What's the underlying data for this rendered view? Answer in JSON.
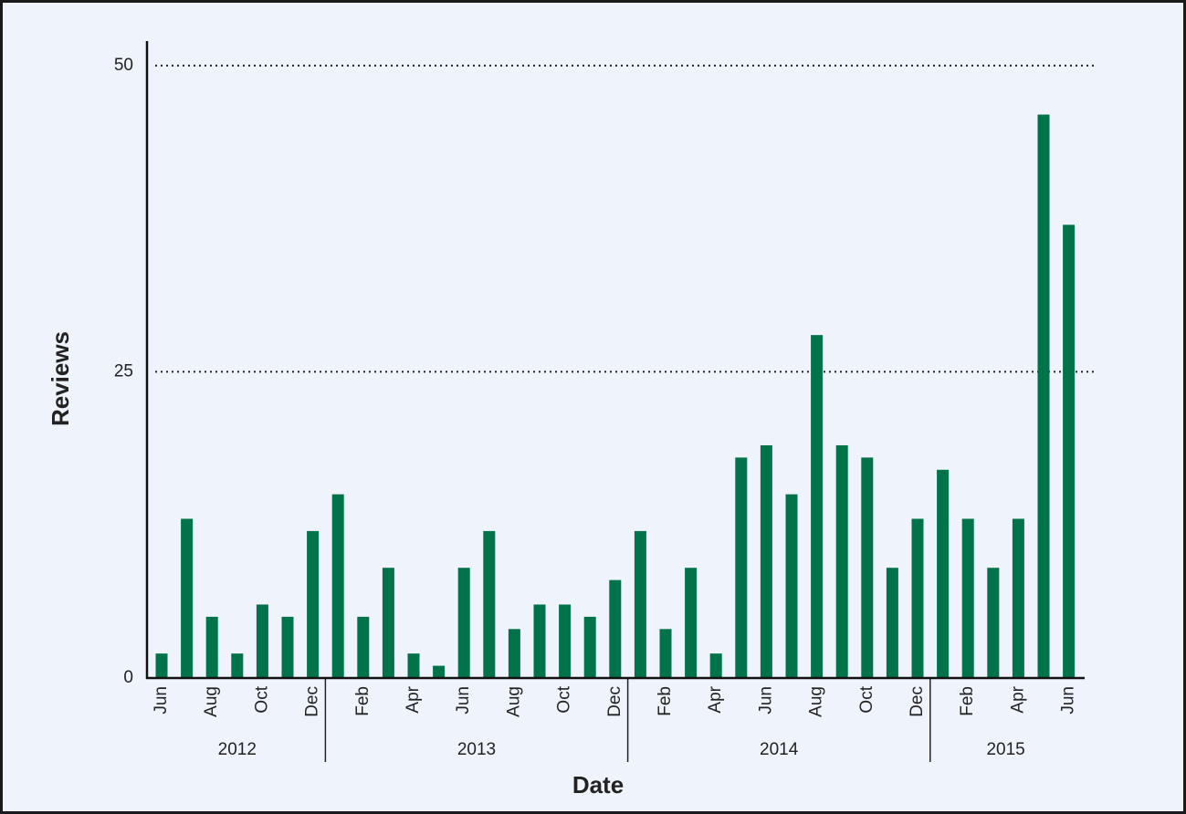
{
  "chart_data": {
    "type": "bar",
    "x_label": "Date",
    "y_label": "Reviews",
    "categories": [
      "Jun",
      null,
      "Aug",
      null,
      "Oct",
      null,
      "Dec",
      null,
      "Feb",
      null,
      "Apr",
      null,
      "Jun",
      null,
      "Aug",
      null,
      "Oct",
      null,
      "Dec",
      null,
      "Feb",
      null,
      "Apr",
      null,
      "Jun",
      null,
      "Aug",
      null,
      "Oct",
      null,
      "Dec",
      null,
      "Feb",
      null,
      "Apr",
      null,
      "Jun"
    ],
    "values": [
      2,
      13,
      5,
      2,
      6,
      5,
      12,
      15,
      5,
      9,
      2,
      1,
      9,
      12,
      4,
      6,
      6,
      5,
      8,
      12,
      4,
      9,
      2,
      18,
      19,
      15,
      28,
      19,
      18,
      9,
      13,
      17,
      13,
      9,
      13,
      46,
      37
    ],
    "x_groups": [
      {
        "label": "2012",
        "span": 7
      },
      {
        "label": "2013",
        "span": 12
      },
      {
        "label": "2014",
        "span": 12
      },
      {
        "label": "2015",
        "span": 6
      }
    ],
    "color": "#00734a",
    "ylim": [
      0,
      52
    ],
    "yticks": [
      0,
      25,
      50
    ],
    "grid": true
  }
}
